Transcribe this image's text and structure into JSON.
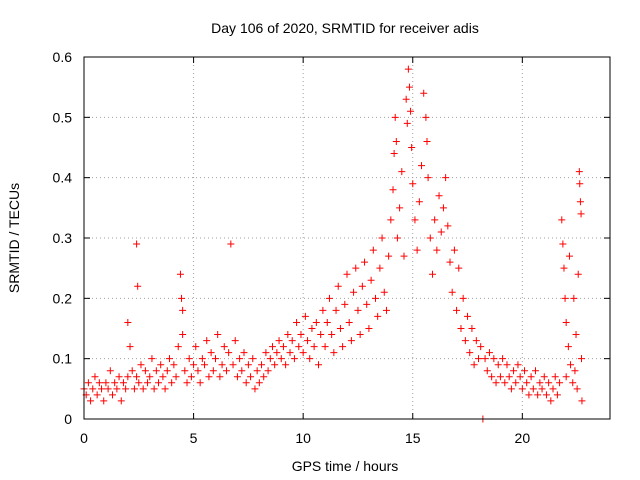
{
  "chart_data": {
    "type": "scatter",
    "title": "Day 106 of 2020, SRMTID for receiver adis",
    "xlabel": "GPS time / hours",
    "ylabel": "SRMTID / TECUs",
    "xlim": [
      0,
      24
    ],
    "ylim": [
      0,
      0.6
    ],
    "x_ticks": [
      0,
      5,
      10,
      15,
      20
    ],
    "x_tick_labels": [
      "0",
      "5",
      "10",
      "15",
      "20"
    ],
    "y_ticks": [
      0,
      0.1,
      0.2,
      0.3,
      0.4,
      0.5,
      0.6
    ],
    "y_tick_labels": [
      "0",
      "0.1",
      "0.2",
      "0.3",
      "0.4",
      "0.5",
      "0.6"
    ],
    "grid": true,
    "marker": "+",
    "color": "#ff0000",
    "series": [
      {
        "name": "SRMTID",
        "points": [
          [
            0.0,
            0.05
          ],
          [
            0.1,
            0.04
          ],
          [
            0.2,
            0.06
          ],
          [
            0.3,
            0.03
          ],
          [
            0.4,
            0.05
          ],
          [
            0.5,
            0.07
          ],
          [
            0.6,
            0.04
          ],
          [
            0.7,
            0.06
          ],
          [
            0.8,
            0.05
          ],
          [
            0.9,
            0.03
          ],
          [
            1.0,
            0.06
          ],
          [
            1.1,
            0.05
          ],
          [
            1.2,
            0.08
          ],
          [
            1.3,
            0.04
          ],
          [
            1.4,
            0.06
          ],
          [
            1.5,
            0.05
          ],
          [
            1.6,
            0.07
          ],
          [
            1.7,
            0.03
          ],
          [
            1.8,
            0.06
          ],
          [
            1.9,
            0.05
          ],
          [
            2.0,
            0.07
          ],
          [
            2.0,
            0.16
          ],
          [
            2.1,
            0.12
          ],
          [
            2.2,
            0.08
          ],
          [
            2.3,
            0.05
          ],
          [
            2.4,
            0.07
          ],
          [
            2.4,
            0.29
          ],
          [
            2.45,
            0.22
          ],
          [
            2.5,
            0.06
          ],
          [
            2.6,
            0.09
          ],
          [
            2.7,
            0.05
          ],
          [
            2.8,
            0.08
          ],
          [
            2.9,
            0.06
          ],
          [
            3.0,
            0.07
          ],
          [
            3.1,
            0.1
          ],
          [
            3.2,
            0.05
          ],
          [
            3.3,
            0.08
          ],
          [
            3.4,
            0.06
          ],
          [
            3.5,
            0.09
          ],
          [
            3.6,
            0.07
          ],
          [
            3.7,
            0.05
          ],
          [
            3.8,
            0.08
          ],
          [
            3.9,
            0.1
          ],
          [
            4.0,
            0.06
          ],
          [
            4.1,
            0.09
          ],
          [
            4.2,
            0.07
          ],
          [
            4.3,
            0.12
          ],
          [
            4.4,
            0.24
          ],
          [
            4.45,
            0.2
          ],
          [
            4.5,
            0.18
          ],
          [
            4.5,
            0.14
          ],
          [
            4.6,
            0.08
          ],
          [
            4.7,
            0.06
          ],
          [
            4.8,
            0.1
          ],
          [
            4.9,
            0.07
          ],
          [
            5.0,
            0.09
          ],
          [
            5.1,
            0.12
          ],
          [
            5.2,
            0.08
          ],
          [
            5.3,
            0.06
          ],
          [
            5.4,
            0.1
          ],
          [
            5.5,
            0.09
          ],
          [
            5.6,
            0.13
          ],
          [
            5.7,
            0.07
          ],
          [
            5.8,
            0.11
          ],
          [
            5.9,
            0.08
          ],
          [
            6.0,
            0.1
          ],
          [
            6.1,
            0.14
          ],
          [
            6.2,
            0.07
          ],
          [
            6.3,
            0.09
          ],
          [
            6.4,
            0.12
          ],
          [
            6.5,
            0.08
          ],
          [
            6.6,
            0.11
          ],
          [
            6.7,
            0.29
          ],
          [
            6.8,
            0.09
          ],
          [
            6.9,
            0.13
          ],
          [
            7.0,
            0.07
          ],
          [
            7.1,
            0.1
          ],
          [
            7.2,
            0.08
          ],
          [
            7.3,
            0.11
          ],
          [
            7.4,
            0.06
          ],
          [
            7.5,
            0.09
          ],
          [
            7.6,
            0.07
          ],
          [
            7.7,
            0.1
          ],
          [
            7.8,
            0.05
          ],
          [
            7.9,
            0.08
          ],
          [
            8.0,
            0.06
          ],
          [
            8.1,
            0.09
          ],
          [
            8.2,
            0.07
          ],
          [
            8.3,
            0.11
          ],
          [
            8.4,
            0.08
          ],
          [
            8.5,
            0.1
          ],
          [
            8.6,
            0.12
          ],
          [
            8.7,
            0.09
          ],
          [
            8.8,
            0.11
          ],
          [
            8.9,
            0.13
          ],
          [
            9.0,
            0.1
          ],
          [
            9.1,
            0.12
          ],
          [
            9.2,
            0.09
          ],
          [
            9.3,
            0.14
          ],
          [
            9.4,
            0.11
          ],
          [
            9.5,
            0.13
          ],
          [
            9.6,
            0.1
          ],
          [
            9.7,
            0.16
          ],
          [
            9.8,
            0.12
          ],
          [
            9.9,
            0.14
          ],
          [
            10.0,
            0.11
          ],
          [
            10.1,
            0.17
          ],
          [
            10.2,
            0.13
          ],
          [
            10.3,
            0.1
          ],
          [
            10.4,
            0.15
          ],
          [
            10.5,
            0.12
          ],
          [
            10.6,
            0.16
          ],
          [
            10.7,
            0.09
          ],
          [
            10.8,
            0.14
          ],
          [
            10.9,
            0.18
          ],
          [
            11.0,
            0.12
          ],
          [
            11.1,
            0.16
          ],
          [
            11.2,
            0.2
          ],
          [
            11.3,
            0.14
          ],
          [
            11.4,
            0.11
          ],
          [
            11.5,
            0.18
          ],
          [
            11.6,
            0.22
          ],
          [
            11.7,
            0.15
          ],
          [
            11.8,
            0.12
          ],
          [
            11.9,
            0.19
          ],
          [
            12.0,
            0.24
          ],
          [
            12.1,
            0.16
          ],
          [
            12.2,
            0.13
          ],
          [
            12.3,
            0.21
          ],
          [
            12.4,
            0.25
          ],
          [
            12.5,
            0.18
          ],
          [
            12.6,
            0.14
          ],
          [
            12.7,
            0.22
          ],
          [
            12.8,
            0.26
          ],
          [
            12.9,
            0.19
          ],
          [
            13.0,
            0.15
          ],
          [
            13.1,
            0.23
          ],
          [
            13.2,
            0.28
          ],
          [
            13.3,
            0.2
          ],
          [
            13.4,
            0.17
          ],
          [
            13.5,
            0.25
          ],
          [
            13.6,
            0.3
          ],
          [
            13.7,
            0.21
          ],
          [
            13.8,
            0.18
          ],
          [
            13.9,
            0.27
          ],
          [
            14.0,
            0.33
          ],
          [
            14.1,
            0.38
          ],
          [
            14.15,
            0.44
          ],
          [
            14.2,
            0.5
          ],
          [
            14.25,
            0.46
          ],
          [
            14.3,
            0.3
          ],
          [
            14.4,
            0.35
          ],
          [
            14.5,
            0.41
          ],
          [
            14.6,
            0.27
          ],
          [
            14.7,
            0.53
          ],
          [
            14.75,
            0.49
          ],
          [
            14.8,
            0.58
          ],
          [
            14.85,
            0.55
          ],
          [
            14.9,
            0.51
          ],
          [
            14.95,
            0.45
          ],
          [
            15.0,
            0.39
          ],
          [
            15.1,
            0.33
          ],
          [
            15.2,
            0.28
          ],
          [
            15.3,
            0.36
          ],
          [
            15.4,
            0.42
          ],
          [
            15.5,
            0.54
          ],
          [
            15.6,
            0.5
          ],
          [
            15.65,
            0.46
          ],
          [
            15.7,
            0.4
          ],
          [
            15.8,
            0.3
          ],
          [
            15.9,
            0.24
          ],
          [
            16.0,
            0.33
          ],
          [
            16.1,
            0.28
          ],
          [
            16.2,
            0.37
          ],
          [
            16.3,
            0.31
          ],
          [
            16.4,
            0.35
          ],
          [
            16.5,
            0.4
          ],
          [
            16.6,
            0.32
          ],
          [
            16.7,
            0.26
          ],
          [
            16.8,
            0.21
          ],
          [
            16.9,
            0.28
          ],
          [
            17.0,
            0.18
          ],
          [
            17.1,
            0.25
          ],
          [
            17.2,
            0.15
          ],
          [
            17.3,
            0.2
          ],
          [
            17.4,
            0.13
          ],
          [
            17.5,
            0.17
          ],
          [
            17.6,
            0.11
          ],
          [
            17.7,
            0.15
          ],
          [
            17.8,
            0.09
          ],
          [
            17.9,
            0.13
          ],
          [
            18.0,
            0.1
          ],
          [
            18.1,
            0.12
          ],
          [
            18.2,
            0.0
          ],
          [
            18.3,
            0.1
          ],
          [
            18.4,
            0.08
          ],
          [
            18.5,
            0.11
          ],
          [
            18.6,
            0.07
          ],
          [
            18.7,
            0.1
          ],
          [
            18.8,
            0.06
          ],
          [
            18.9,
            0.09
          ],
          [
            19.0,
            0.07
          ],
          [
            19.1,
            0.1
          ],
          [
            19.2,
            0.06
          ],
          [
            19.3,
            0.09
          ],
          [
            19.4,
            0.07
          ],
          [
            19.5,
            0.05
          ],
          [
            19.6,
            0.08
          ],
          [
            19.7,
            0.06
          ],
          [
            19.8,
            0.09
          ],
          [
            19.9,
            0.07
          ],
          [
            20.0,
            0.05
          ],
          [
            20.1,
            0.08
          ],
          [
            20.2,
            0.06
          ],
          [
            20.3,
            0.04
          ],
          [
            20.4,
            0.07
          ],
          [
            20.5,
            0.05
          ],
          [
            20.6,
            0.08
          ],
          [
            20.7,
            0.04
          ],
          [
            20.8,
            0.06
          ],
          [
            20.9,
            0.05
          ],
          [
            21.0,
            0.07
          ],
          [
            21.1,
            0.04
          ],
          [
            21.2,
            0.06
          ],
          [
            21.3,
            0.03
          ],
          [
            21.4,
            0.05
          ],
          [
            21.5,
            0.07
          ],
          [
            21.6,
            0.04
          ],
          [
            21.7,
            0.06
          ],
          [
            21.8,
            0.33
          ],
          [
            21.85,
            0.29
          ],
          [
            21.9,
            0.25
          ],
          [
            21.95,
            0.2
          ],
          [
            22.0,
            0.16
          ],
          [
            22.1,
            0.12
          ],
          [
            22.15,
            0.27
          ],
          [
            22.2,
            0.09
          ],
          [
            22.3,
            0.06
          ],
          [
            22.35,
            0.2
          ],
          [
            22.4,
            0.08
          ],
          [
            22.45,
            0.14
          ],
          [
            22.5,
            0.05
          ],
          [
            22.55,
            0.24
          ],
          [
            22.6,
            0.41
          ],
          [
            22.62,
            0.39
          ],
          [
            22.65,
            0.36
          ],
          [
            22.68,
            0.34
          ],
          [
            22.7,
            0.1
          ],
          [
            22.72,
            0.03
          ],
          [
            22.0,
            0.07
          ]
        ]
      }
    ]
  }
}
